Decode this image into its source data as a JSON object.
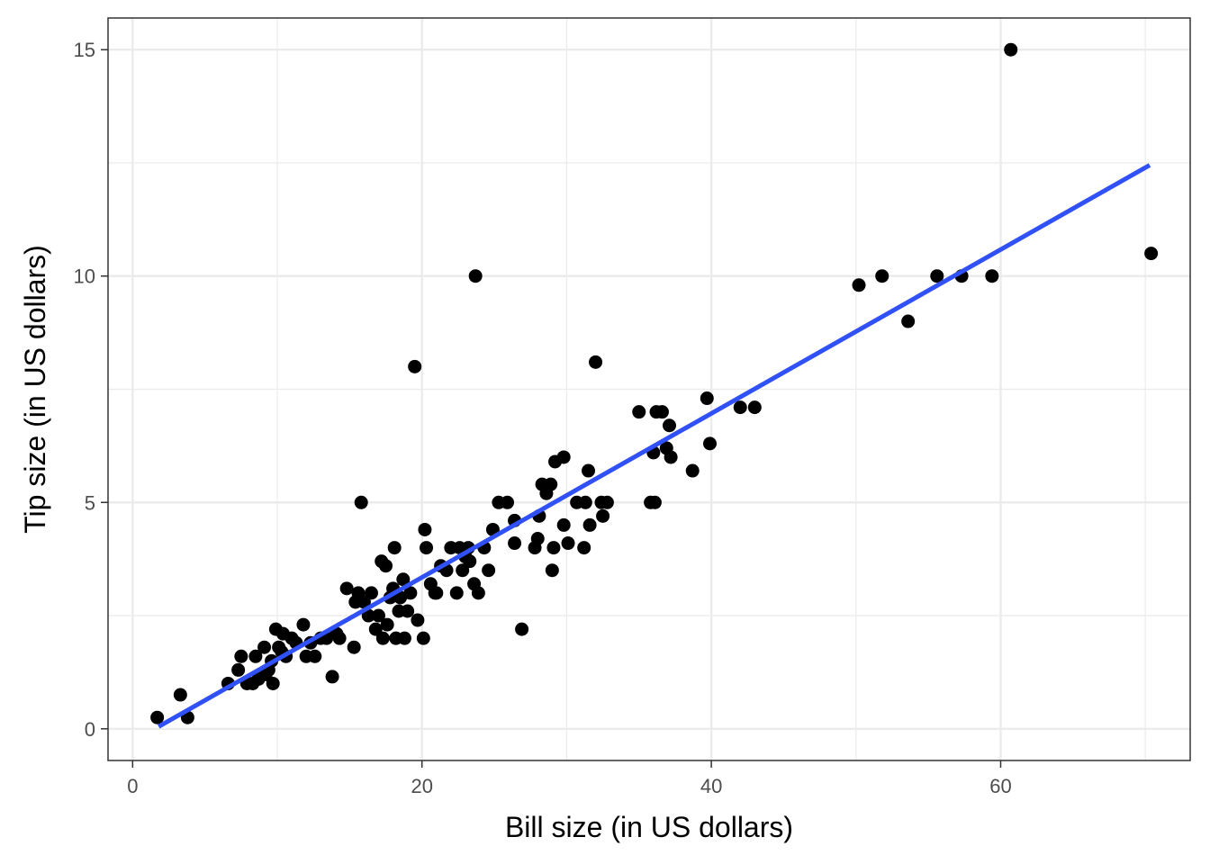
{
  "chart_data": {
    "type": "scatter",
    "xlabel": "Bill size (in US dollars)",
    "ylabel": "Tip size (in US dollars)",
    "xlim": [
      -1.7,
      73.1
    ],
    "ylim": [
      -0.7,
      15.7
    ],
    "x_ticks": [
      0,
      20,
      40,
      60
    ],
    "y_ticks": [
      0,
      5,
      10,
      15
    ],
    "grid": true,
    "theme": "black-and-white",
    "series": [
      {
        "type": "points",
        "color": "#000000",
        "points": [
          [
            1.7,
            0.25
          ],
          [
            3.3,
            0.75
          ],
          [
            3.8,
            0.25
          ],
          [
            6.6,
            1.0
          ],
          [
            7.3,
            1.3
          ],
          [
            7.5,
            1.6
          ],
          [
            7.9,
            1.0
          ],
          [
            8.3,
            1.0
          ],
          [
            8.5,
            1.6
          ],
          [
            8.7,
            1.1
          ],
          [
            9.1,
            1.8
          ],
          [
            9.2,
            1.2
          ],
          [
            9.4,
            1.3
          ],
          [
            9.6,
            1.5
          ],
          [
            9.7,
            1.0
          ],
          [
            9.9,
            2.2
          ],
          [
            10.1,
            1.8
          ],
          [
            10.3,
            1.7
          ],
          [
            10.4,
            2.1
          ],
          [
            10.6,
            1.6
          ],
          [
            11.0,
            2.0
          ],
          [
            11.3,
            1.9
          ],
          [
            11.8,
            2.3
          ],
          [
            12.0,
            1.6
          ],
          [
            12.3,
            1.9
          ],
          [
            12.6,
            1.6
          ],
          [
            13.0,
            2.0
          ],
          [
            13.4,
            2.0
          ],
          [
            13.8,
            1.15
          ],
          [
            14.1,
            2.1
          ],
          [
            14.3,
            2.0
          ],
          [
            14.8,
            3.1
          ],
          [
            15.3,
            1.8
          ],
          [
            15.4,
            2.8
          ],
          [
            15.6,
            3.0
          ],
          [
            15.8,
            5.0
          ],
          [
            16.0,
            2.8
          ],
          [
            16.3,
            2.5
          ],
          [
            16.5,
            3.0
          ],
          [
            16.8,
            2.2
          ],
          [
            17.0,
            2.5
          ],
          [
            17.2,
            3.7
          ],
          [
            17.3,
            2.0
          ],
          [
            17.5,
            3.6
          ],
          [
            17.6,
            2.3
          ],
          [
            17.8,
            2.9
          ],
          [
            18.0,
            3.1
          ],
          [
            18.1,
            4.0
          ],
          [
            18.2,
            2.0
          ],
          [
            18.4,
            2.6
          ],
          [
            18.5,
            2.9
          ],
          [
            18.7,
            3.3
          ],
          [
            18.8,
            2.0
          ],
          [
            19.0,
            2.6
          ],
          [
            19.2,
            3.0
          ],
          [
            19.5,
            8.0
          ],
          [
            19.7,
            2.4
          ],
          [
            20.1,
            2.0
          ],
          [
            20.2,
            4.4
          ],
          [
            20.3,
            4.0
          ],
          [
            20.6,
            3.2
          ],
          [
            20.9,
            3.0
          ],
          [
            21.0,
            3.0
          ],
          [
            21.3,
            3.6
          ],
          [
            21.7,
            3.5
          ],
          [
            22.0,
            4.0
          ],
          [
            22.4,
            3.0
          ],
          [
            22.6,
            4.0
          ],
          [
            22.8,
            3.5
          ],
          [
            23.0,
            3.8
          ],
          [
            23.2,
            4.0
          ],
          [
            23.3,
            3.7
          ],
          [
            23.7,
            10.0
          ],
          [
            23.6,
            3.2
          ],
          [
            23.9,
            3.0
          ],
          [
            24.3,
            4.0
          ],
          [
            24.6,
            3.5
          ],
          [
            24.9,
            4.4
          ],
          [
            25.3,
            5.0
          ],
          [
            25.9,
            5.0
          ],
          [
            26.4,
            4.1
          ],
          [
            26.4,
            4.6
          ],
          [
            26.9,
            2.2
          ],
          [
            27.8,
            4.0
          ],
          [
            28.0,
            4.2
          ],
          [
            28.1,
            4.7
          ],
          [
            28.3,
            5.4
          ],
          [
            28.6,
            5.2
          ],
          [
            28.9,
            5.4
          ],
          [
            29.0,
            3.5
          ],
          [
            29.1,
            4.0
          ],
          [
            29.2,
            5.9
          ],
          [
            29.8,
            4.5
          ],
          [
            30.1,
            4.1
          ],
          [
            29.8,
            6.0
          ],
          [
            30.7,
            5.0
          ],
          [
            31.2,
            4.0
          ],
          [
            31.3,
            5.0
          ],
          [
            31.6,
            4.5
          ],
          [
            31.5,
            5.7
          ],
          [
            32.0,
            8.1
          ],
          [
            32.4,
            5.0
          ],
          [
            32.5,
            4.7
          ],
          [
            32.8,
            5.0
          ],
          [
            35.0,
            7.0
          ],
          [
            35.8,
            5.0
          ],
          [
            36.1,
            5.0
          ],
          [
            36.0,
            6.1
          ],
          [
            36.2,
            7.0
          ],
          [
            36.6,
            7.0
          ],
          [
            36.9,
            6.2
          ],
          [
            37.1,
            6.7
          ],
          [
            37.2,
            6.0
          ],
          [
            38.7,
            5.7
          ],
          [
            39.7,
            7.3
          ],
          [
            39.9,
            6.3
          ],
          [
            42.0,
            7.1
          ],
          [
            43.0,
            7.1
          ],
          [
            50.2,
            9.8
          ],
          [
            51.8,
            10.0
          ],
          [
            53.6,
            9.0
          ],
          [
            55.6,
            10.0
          ],
          [
            57.3,
            10.0
          ],
          [
            59.4,
            10.0
          ],
          [
            60.7,
            15.0
          ],
          [
            70.4,
            10.5
          ]
        ]
      },
      {
        "type": "line",
        "color": "#3050f8",
        "points": [
          [
            1.8,
            0.05
          ],
          [
            70.3,
            12.45
          ]
        ]
      }
    ]
  }
}
